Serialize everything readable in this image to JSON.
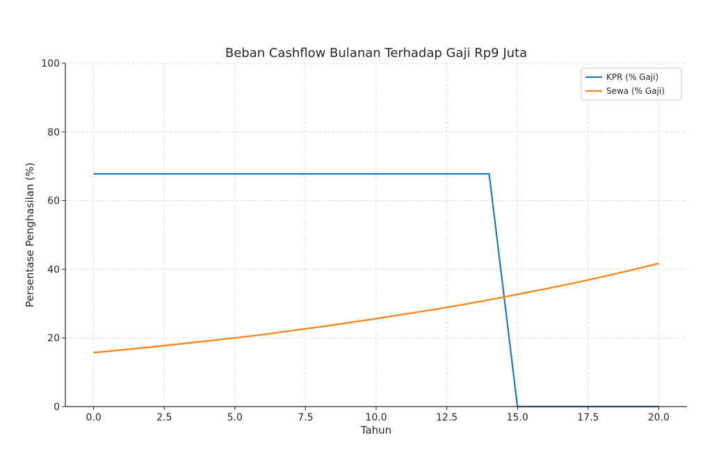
{
  "chart_data": {
    "type": "line",
    "title": "Beban Cashflow Bulanan Terhadap Gaji Rp9 Juta",
    "xlabel": "Tahun",
    "ylabel": "Persentase Penghasilan (%)",
    "xlim": [
      -1,
      21
    ],
    "ylim": [
      0,
      100
    ],
    "xticks": [
      0,
      2.5,
      5,
      7.5,
      10,
      12.5,
      15,
      17.5,
      20
    ],
    "xtick_labels": [
      "0.0",
      "2.5",
      "5.0",
      "7.5",
      "10.0",
      "12.5",
      "15.0",
      "17.5",
      "20.0"
    ],
    "yticks": [
      0,
      20,
      40,
      60,
      80,
      100
    ],
    "ytick_labels": [
      "0",
      "20",
      "40",
      "60",
      "80",
      "100"
    ],
    "grid": true,
    "legend_position": "top-right",
    "series": [
      {
        "name": "KPR (% Gaji)",
        "color": "#1f77b4",
        "x": [
          0,
          1,
          2,
          3,
          4,
          5,
          6,
          7,
          8,
          9,
          10,
          11,
          12,
          13,
          14,
          15,
          16,
          17,
          18,
          19,
          20
        ],
        "values": [
          67.8,
          67.8,
          67.8,
          67.8,
          67.8,
          67.8,
          67.8,
          67.8,
          67.8,
          67.8,
          67.8,
          67.8,
          67.8,
          67.8,
          67.8,
          0,
          0,
          0,
          0,
          0,
          0
        ]
      },
      {
        "name": "Sewa (% Gaji)",
        "color": "#ff7f0e",
        "x": [
          0,
          1,
          2,
          3,
          4,
          5,
          6,
          7,
          8,
          9,
          10,
          11,
          12,
          13,
          14,
          15,
          16,
          17,
          18,
          19,
          20
        ],
        "values": [
          15.7,
          16.5,
          17.3,
          18.2,
          19.1,
          20.0,
          21.0,
          22.1,
          23.2,
          24.4,
          25.6,
          26.9,
          28.2,
          29.6,
          31.1,
          32.7,
          34.3,
          36.0,
          37.8,
          39.7,
          41.7
        ]
      }
    ]
  }
}
